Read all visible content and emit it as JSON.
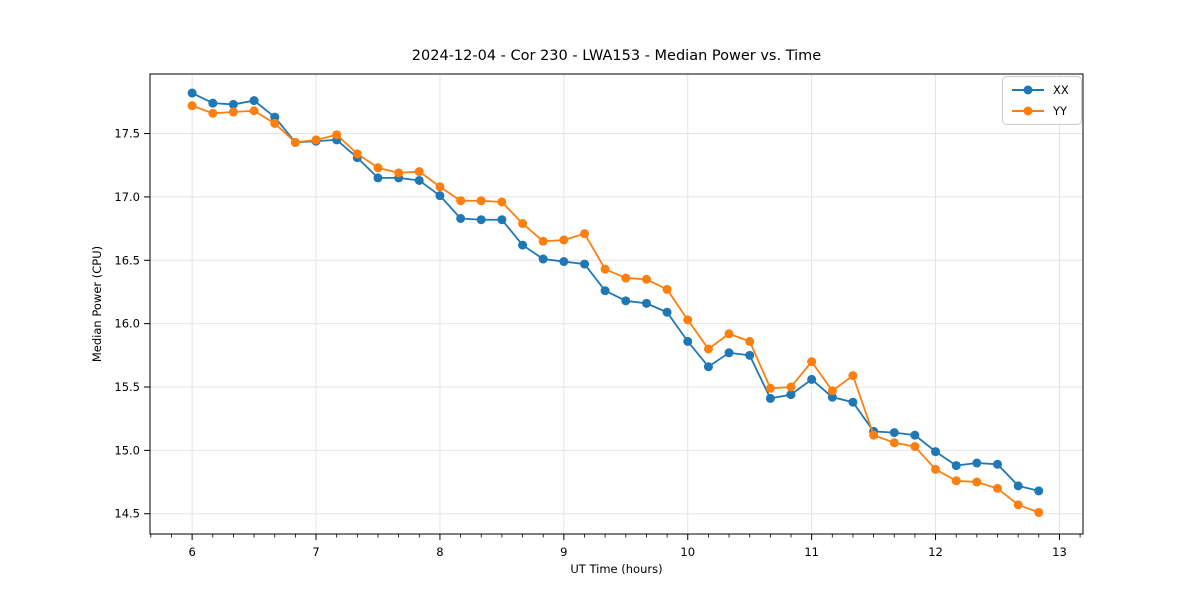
{
  "chart_data": {
    "type": "line",
    "title": "2024-12-04 - Cor 230 - LWA153 - Median Power vs. Time",
    "xlabel": "UT Time (hours)",
    "ylabel": "Median Power (CPU)",
    "xlim": [
      5.66,
      13.19
    ],
    "ylim": [
      14.34,
      17.97
    ],
    "xtick_values": [
      6,
      7,
      8,
      9,
      10,
      11,
      12,
      13
    ],
    "xtick_labels": [
      "6",
      "7",
      "8",
      "9",
      "10",
      "11",
      "12",
      "13"
    ],
    "ytick_values": [
      14.5,
      15.0,
      15.5,
      16.0,
      16.5,
      17.0,
      17.5
    ],
    "ytick_labels": [
      "14.5",
      "15.0",
      "15.5",
      "16.0",
      "16.5",
      "17.0",
      "17.5"
    ],
    "grid": true,
    "grid_color": "#e4e4e4",
    "legend_position": "upper right",
    "x": [
      6.0,
      6.167,
      6.333,
      6.5,
      6.667,
      6.833,
      7.0,
      7.167,
      7.333,
      7.5,
      7.667,
      7.833,
      8.0,
      8.167,
      8.333,
      8.5,
      8.667,
      8.833,
      9.0,
      9.167,
      9.333,
      9.5,
      9.667,
      9.833,
      10.0,
      10.167,
      10.333,
      10.5,
      10.667,
      10.833,
      11.0,
      11.167,
      11.333,
      11.5,
      11.667,
      11.833,
      12.0,
      12.167,
      12.333,
      12.5,
      12.667,
      12.833
    ],
    "series": [
      {
        "name": "XX",
        "color": "#1f77b4",
        "values": [
          17.82,
          17.74,
          17.73,
          17.76,
          17.63,
          17.43,
          17.44,
          17.45,
          17.31,
          17.15,
          17.15,
          17.13,
          17.01,
          16.83,
          16.82,
          16.82,
          16.62,
          16.51,
          16.49,
          16.47,
          16.26,
          16.18,
          16.16,
          16.09,
          15.86,
          15.66,
          15.77,
          15.75,
          15.41,
          15.44,
          15.56,
          15.42,
          15.38,
          15.15,
          15.14,
          15.12,
          14.99,
          14.88,
          14.9,
          14.89,
          14.72,
          14.68
        ]
      },
      {
        "name": "YY",
        "color": "#ff7f0e",
        "values": [
          17.72,
          17.66,
          17.67,
          17.68,
          17.58,
          17.43,
          17.45,
          17.49,
          17.34,
          17.23,
          17.19,
          17.2,
          17.08,
          16.97,
          16.97,
          16.96,
          16.79,
          16.65,
          16.66,
          16.71,
          16.43,
          16.36,
          16.35,
          16.27,
          16.03,
          15.8,
          15.92,
          15.86,
          15.49,
          15.5,
          15.7,
          15.47,
          15.59,
          15.12,
          15.06,
          15.03,
          14.85,
          14.76,
          14.75,
          14.7,
          14.57,
          14.51
        ]
      }
    ]
  }
}
